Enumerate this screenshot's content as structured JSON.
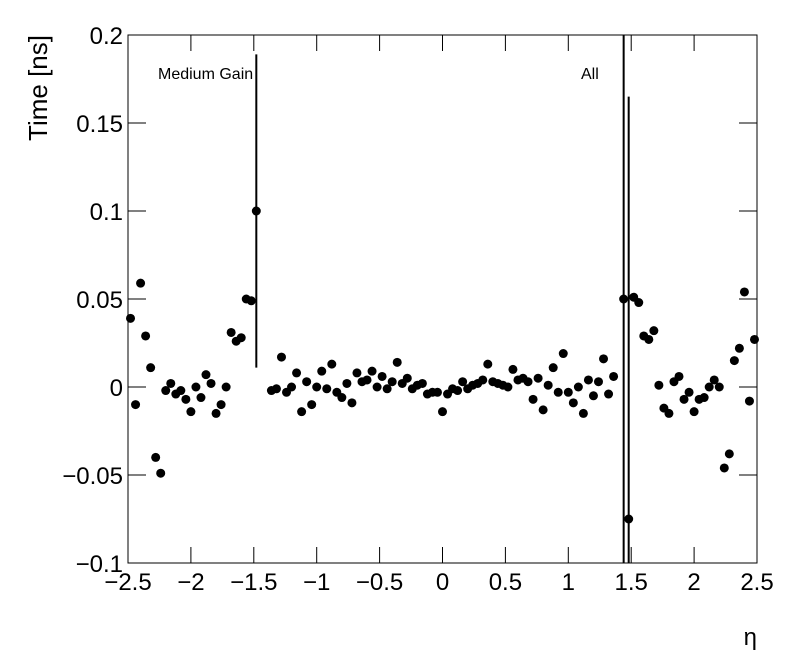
{
  "chart_data": {
    "type": "scatter",
    "xlabel": "η",
    "ylabel": "Time [ns]",
    "annotations": [
      "Medium Gain",
      "All"
    ],
    "color": "#000000",
    "xlim": [
      -2.5,
      2.5
    ],
    "ylim": [
      -0.1,
      0.2
    ],
    "xticks": [
      {
        "value": -2.5,
        "label": "−2.5"
      },
      {
        "value": -2,
        "label": "−2"
      },
      {
        "value": -1.5,
        "label": "−1.5"
      },
      {
        "value": -1,
        "label": "−1"
      },
      {
        "value": -0.5,
        "label": "−0.5"
      },
      0,
      0.5,
      1,
      1.5,
      2,
      2.5
    ],
    "yticks": [
      {
        "value": -0.1,
        "label": "−0.1"
      },
      {
        "value": -0.05,
        "label": "−0.05"
      },
      0,
      0.05,
      0.1,
      0.15,
      0.2
    ],
    "x": [
      -2.48,
      -2.44,
      -2.4,
      -2.36,
      -2.32,
      -2.28,
      -2.24,
      -2.2,
      -2.16,
      -2.12,
      -2.08,
      -2.04,
      -2.0,
      -1.96,
      -1.92,
      -1.88,
      -1.84,
      -1.8,
      -1.76,
      -1.72,
      -1.68,
      -1.64,
      -1.6,
      -1.56,
      -1.52,
      -1.48,
      -1.36,
      -1.32,
      -1.28,
      -1.24,
      -1.2,
      -1.16,
      -1.12,
      -1.08,
      -1.04,
      -1.0,
      -0.96,
      -0.92,
      -0.88,
      -0.84,
      -0.8,
      -0.76,
      -0.72,
      -0.68,
      -0.64,
      -0.6,
      -0.56,
      -0.52,
      -0.48,
      -0.44,
      -0.4,
      -0.36,
      -0.32,
      -0.28,
      -0.24,
      -0.2,
      -0.16,
      -0.12,
      -0.08,
      -0.04,
      0.0,
      0.04,
      0.08,
      0.12,
      0.16,
      0.2,
      0.24,
      0.28,
      0.32,
      0.36,
      0.4,
      0.44,
      0.48,
      0.52,
      0.56,
      0.6,
      0.64,
      0.68,
      0.72,
      0.76,
      0.8,
      0.84,
      0.88,
      0.92,
      0.96,
      1.0,
      1.04,
      1.08,
      1.12,
      1.16,
      1.2,
      1.24,
      1.28,
      1.32,
      1.36,
      1.44,
      1.48,
      1.52,
      1.56,
      1.6,
      1.64,
      1.68,
      1.72,
      1.76,
      1.8,
      1.84,
      1.88,
      1.92,
      1.96,
      2.0,
      2.04,
      2.08,
      2.12,
      2.16,
      2.2,
      2.24,
      2.28,
      2.32,
      2.36,
      2.4,
      2.44,
      2.48
    ],
    "values": [
      0.039,
      -0.01,
      0.059,
      0.029,
      0.011,
      -0.04,
      -0.049,
      -0.002,
      0.002,
      -0.004,
      -0.002,
      -0.007,
      -0.014,
      0.0,
      -0.006,
      0.007,
      0.002,
      -0.015,
      -0.01,
      0.0,
      0.031,
      0.026,
      0.028,
      0.05,
      0.049,
      0.1,
      -0.002,
      -0.001,
      0.017,
      -0.003,
      0.0,
      0.008,
      -0.014,
      0.003,
      -0.01,
      0.0,
      0.009,
      -0.001,
      0.013,
      -0.003,
      -0.006,
      0.002,
      -0.009,
      0.008,
      0.003,
      0.004,
      0.009,
      0.0,
      0.006,
      -0.001,
      0.003,
      0.014,
      0.002,
      0.005,
      -0.001,
      0.001,
      0.002,
      -0.004,
      -0.003,
      -0.003,
      -0.014,
      -0.004,
      -0.001,
      -0.002,
      0.003,
      -0.001,
      0.001,
      0.002,
      0.004,
      0.013,
      0.003,
      0.002,
      0.001,
      0.0,
      0.01,
      0.004,
      0.005,
      0.003,
      -0.007,
      0.005,
      -0.013,
      0.001,
      0.011,
      -0.003,
      0.019,
      -0.003,
      -0.009,
      0.0,
      -0.015,
      0.004,
      -0.005,
      0.003,
      0.016,
      -0.004,
      0.006,
      0.05,
      -0.075,
      0.051,
      0.048,
      0.029,
      0.027,
      0.032,
      0.001,
      -0.012,
      -0.015,
      0.003,
      0.006,
      -0.007,
      -0.003,
      -0.014,
      -0.007,
      -0.006,
      0.0,
      0.004,
      0.0,
      -0.046,
      -0.038,
      0.015,
      0.022,
      0.054,
      -0.008,
      0.027
    ],
    "errors": [
      null,
      null,
      null,
      null,
      null,
      null,
      null,
      null,
      null,
      null,
      null,
      null,
      null,
      null,
      null,
      null,
      null,
      null,
      null,
      null,
      null,
      null,
      null,
      null,
      null,
      0.089,
      null,
      null,
      null,
      null,
      null,
      null,
      null,
      null,
      null,
      null,
      null,
      null,
      null,
      null,
      null,
      null,
      null,
      null,
      null,
      null,
      null,
      null,
      null,
      null,
      null,
      null,
      null,
      null,
      null,
      null,
      null,
      null,
      null,
      null,
      null,
      null,
      null,
      null,
      null,
      null,
      null,
      null,
      null,
      null,
      null,
      null,
      null,
      null,
      null,
      null,
      null,
      null,
      null,
      null,
      null,
      null,
      null,
      null,
      null,
      null,
      null,
      null,
      null,
      null,
      null,
      null,
      null,
      null,
      null,
      0.2,
      0.24,
      null,
      null,
      null,
      null,
      null,
      null,
      null,
      null,
      null,
      null,
      null,
      null,
      null,
      null,
      null,
      null,
      null,
      null,
      null,
      null,
      null,
      null,
      null,
      null,
      null
    ]
  }
}
